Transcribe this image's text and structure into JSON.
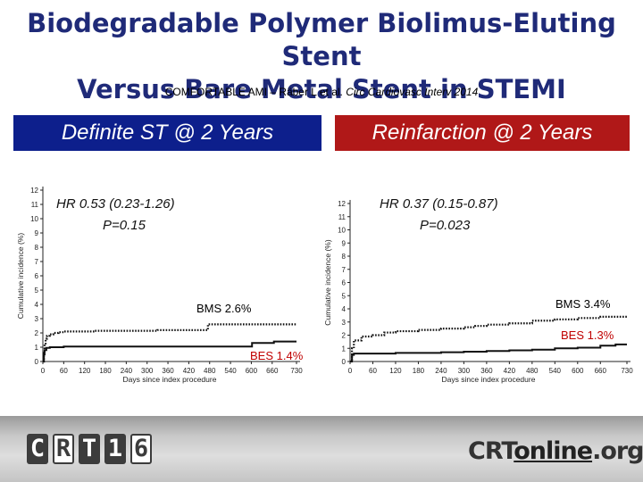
{
  "header": {
    "title_line1": "Biodegradable Polymer Biolimus-Eluting Stent",
    "title_line2": "Versus Bare Metal Stent in STEMI",
    "citation_plain": "COMFORTABLE AMI – Räber L et al. ",
    "citation_italic": "Circ Cardiovasc Interv 2014"
  },
  "panels": {
    "left_title": "Definite ST @ 2 Years",
    "right_title": "Reinfarction @ 2 Years"
  },
  "chart_data": [
    {
      "type": "line",
      "title": "Definite ST @ 2 Years",
      "xlabel": "Days since index procedure",
      "ylabel": "Cumulative incidence (%)",
      "xlim": [
        0,
        730
      ],
      "ylim": [
        0,
        12
      ],
      "xticks": [
        0,
        60,
        120,
        180,
        240,
        300,
        360,
        420,
        480,
        540,
        600,
        660,
        730
      ],
      "yticks": [
        0,
        1,
        2,
        3,
        4,
        5,
        6,
        7,
        8,
        9,
        10,
        11,
        12
      ],
      "annotation_hr": "HR 0.53 (0.23-1.26)",
      "annotation_p": "P=0.15",
      "series": [
        {
          "name": "BMS 2.6%",
          "style": "dotted",
          "color": "#111111",
          "x": [
            0,
            3,
            5,
            8,
            12,
            20,
            30,
            45,
            60,
            100,
            150,
            240,
            330,
            420,
            470,
            475,
            560,
            660,
            730
          ],
          "y": [
            0,
            0.6,
            1.2,
            1.6,
            1.8,
            1.9,
            2.0,
            2.05,
            2.1,
            2.1,
            2.15,
            2.15,
            2.2,
            2.2,
            2.2,
            2.6,
            2.6,
            2.6,
            2.6
          ]
        },
        {
          "name": "BES 1.4%",
          "style": "solid",
          "color": "#111111",
          "x": [
            0,
            3,
            5,
            10,
            20,
            40,
            60,
            120,
            240,
            360,
            480,
            600,
            602,
            660,
            665,
            730
          ],
          "y": [
            0,
            0.5,
            0.8,
            0.95,
            1.0,
            1.0,
            1.05,
            1.05,
            1.05,
            1.05,
            1.05,
            1.05,
            1.3,
            1.3,
            1.4,
            1.4
          ]
        }
      ]
    },
    {
      "type": "line",
      "title": "Reinfarction @ 2 Years",
      "xlabel": "Days since index procedure",
      "ylabel": "Cumulative incidence (%)",
      "xlim": [
        0,
        730
      ],
      "ylim": [
        0,
        12
      ],
      "xticks": [
        0,
        60,
        120,
        180,
        240,
        300,
        360,
        420,
        480,
        540,
        600,
        660,
        730
      ],
      "yticks": [
        0,
        1,
        2,
        3,
        4,
        5,
        6,
        7,
        8,
        9,
        10,
        11,
        12
      ],
      "annotation_hr": "HR 0.37 (0.15-0.87)",
      "annotation_p": "P=0.023",
      "series": [
        {
          "name": "BMS 3.4%",
          "style": "dotted",
          "color": "#111111",
          "x": [
            0,
            5,
            10,
            30,
            60,
            90,
            120,
            180,
            240,
            300,
            330,
            360,
            420,
            480,
            540,
            600,
            660,
            730
          ],
          "y": [
            0,
            1.0,
            1.6,
            1.9,
            2.0,
            2.2,
            2.3,
            2.4,
            2.5,
            2.6,
            2.7,
            2.8,
            2.9,
            3.1,
            3.2,
            3.3,
            3.4,
            3.4
          ]
        },
        {
          "name": "BES 1.3%",
          "style": "solid",
          "color": "#111111",
          "x": [
            0,
            5,
            10,
            60,
            120,
            240,
            300,
            360,
            420,
            480,
            540,
            600,
            660,
            700,
            730
          ],
          "y": [
            0,
            0.5,
            0.6,
            0.6,
            0.65,
            0.7,
            0.75,
            0.8,
            0.85,
            0.9,
            1.0,
            1.05,
            1.2,
            1.3,
            1.3
          ]
        }
      ],
      "label_colors": {
        "BMS 3.4%": "#000000",
        "BES 1.3%": "#c00000"
      }
    }
  ],
  "footer": {
    "crt_letters": [
      "C",
      "R",
      "T",
      "1",
      "6"
    ],
    "crt_dark": [
      true,
      false,
      true,
      true,
      false
    ],
    "site_pre": "CRT",
    "site_mid": "online",
    "site_post": ".org"
  }
}
